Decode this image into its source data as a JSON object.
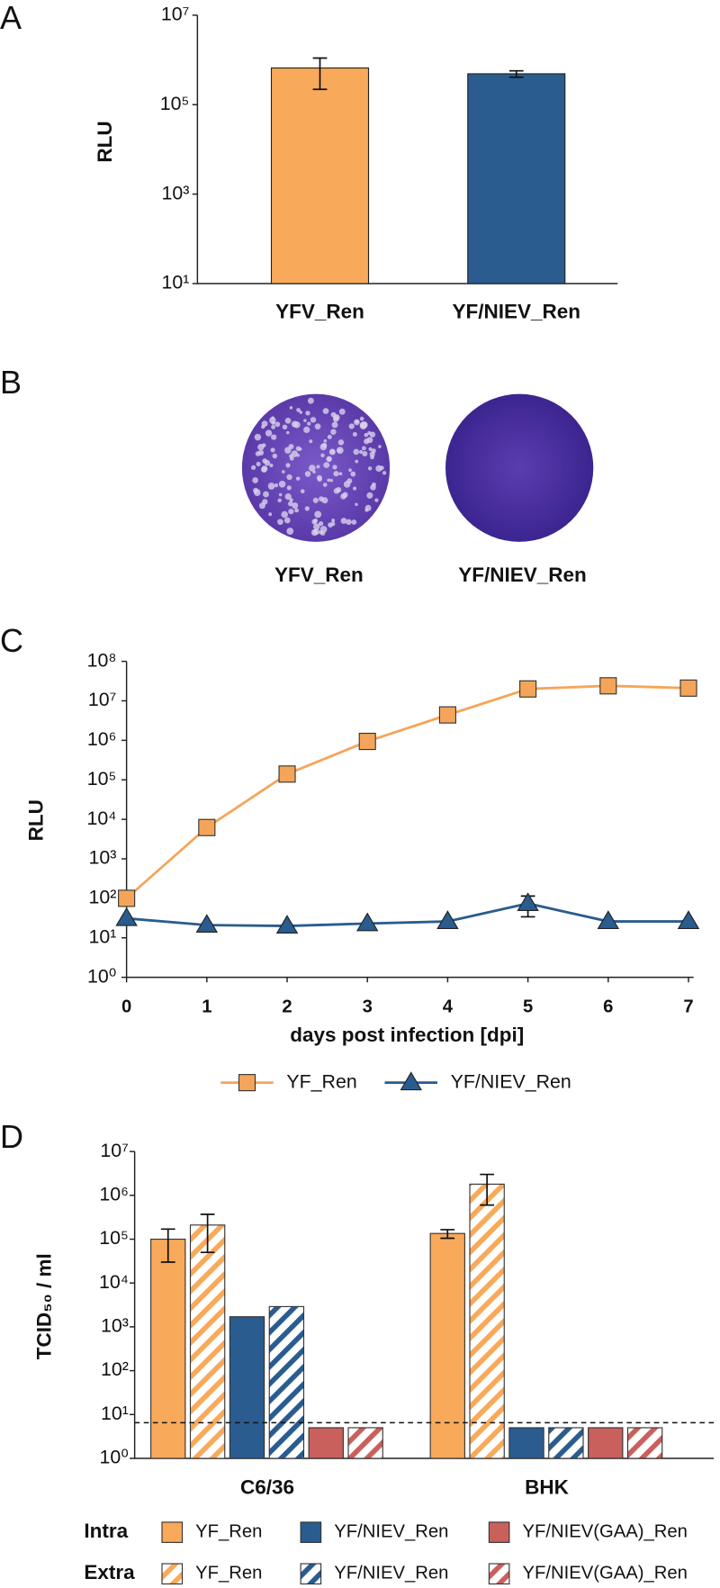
{
  "chart_data": [
    {
      "type": "bar",
      "panel_label": "A",
      "y_label": "RLU",
      "log_y": true,
      "ylim": [
        10,
        10000000
      ],
      "yticks": [
        {
          "value": 10,
          "label": "10¹"
        },
        {
          "value": 1000,
          "label": "10³"
        },
        {
          "value": 100000,
          "label": "10⁵"
        },
        {
          "value": 10000000,
          "label": "10⁷"
        }
      ],
      "categories": [
        "YFV_Ren",
        "YF/NIEV_Ren"
      ],
      "values": [
        660000,
        490000
      ],
      "errors": [
        440000,
        80000
      ],
      "colors": [
        "#f8a95a",
        "#2a5c8f"
      ]
    },
    {
      "type": "line",
      "panel_label": "C",
      "y_label": "RLU",
      "x_label": "days post infection [dpi]",
      "log_y": true,
      "xlim": [
        0,
        7
      ],
      "xticks": [
        0,
        1,
        2,
        3,
        4,
        5,
        6,
        7
      ],
      "ylim": [
        1,
        100000000
      ],
      "yticks": [
        {
          "value": 1,
          "label": "10⁰"
        },
        {
          "value": 10,
          "label": "10¹"
        },
        {
          "value": 100,
          "label": "10²"
        },
        {
          "value": 1000,
          "label": "10³"
        },
        {
          "value": 10000,
          "label": "10⁴"
        },
        {
          "value": 100000,
          "label": "10⁵"
        },
        {
          "value": 1000000,
          "label": "10⁶"
        },
        {
          "value": 10000000,
          "label": "10⁷"
        },
        {
          "value": 100000000,
          "label": "10⁸"
        }
      ],
      "x": [
        0,
        1,
        2,
        3,
        4,
        5,
        6,
        7
      ],
      "legend": "bottom",
      "series": [
        {
          "name": "YF_Ren",
          "color": "#f5a55a",
          "marker": "square",
          "values": [
            100,
            6200,
            140000,
            940000,
            4400000,
            20000000,
            24000000,
            21000000
          ]
        },
        {
          "name": "YF/NIEV_Ren",
          "color": "#2a5c8f",
          "marker": "triangle",
          "values": [
            31,
            21,
            20,
            23,
            26,
            74,
            26,
            26
          ],
          "errors": [
            null,
            null,
            null,
            null,
            null,
            40,
            null,
            null
          ]
        }
      ]
    },
    {
      "type": "grouped_bar",
      "panel_label": "D",
      "y_label": "TCID₅₀ / ml",
      "log_y": true,
      "ylim": [
        1,
        10000000
      ],
      "yticks": [
        {
          "value": 1,
          "label": "10⁰"
        },
        {
          "value": 10,
          "label": "10¹"
        },
        {
          "value": 100,
          "label": "10²"
        },
        {
          "value": 1000,
          "label": "10³"
        },
        {
          "value": 10000,
          "label": "10⁴"
        },
        {
          "value": 100000,
          "label": "10⁵"
        },
        {
          "value": 1000000,
          "label": "10⁶"
        },
        {
          "value": 10000000,
          "label": "10⁷"
        }
      ],
      "categories": [
        "C6/36",
        "BHK"
      ],
      "limit_line": 6.5,
      "legend_rows": [
        "Intra",
        "Extra"
      ],
      "series": [
        {
          "name": "YF_Ren",
          "color": "#f8a95a",
          "pattern": "solid",
          "values": [
            100000,
            135000
          ],
          "errors": [
            70000,
            30000
          ]
        },
        {
          "name": "YF_Ren",
          "color": "#f8a95a",
          "pattern": "hatch",
          "values": [
            210000,
            1800000
          ],
          "errors": [
            160000,
            1200000
          ]
        },
        {
          "name": "YF/NIEV_Ren",
          "color": "#2a5c8f",
          "pattern": "solid",
          "values": [
            1700,
            5
          ],
          "errors": [
            null,
            null
          ]
        },
        {
          "name": "YF/NIEV_Ren",
          "color": "#2a5c8f",
          "pattern": "hatch",
          "values": [
            2900,
            5
          ],
          "errors": [
            null,
            null
          ]
        },
        {
          "name": "YF/NIEV(GAA)_Ren",
          "color": "#c9605c",
          "pattern": "solid",
          "values": [
            5,
            5
          ],
          "errors": [
            null,
            null
          ]
        },
        {
          "name": "YF/NIEV(GAA)_Ren",
          "color": "#c9605c",
          "pattern": "hatch",
          "values": [
            5,
            5
          ],
          "errors": [
            null,
            null
          ]
        }
      ]
    }
  ],
  "plaque_panel": {
    "panel_label": "B",
    "captions": [
      "YFV_Ren",
      "YF/NIEV_Ren"
    ]
  }
}
